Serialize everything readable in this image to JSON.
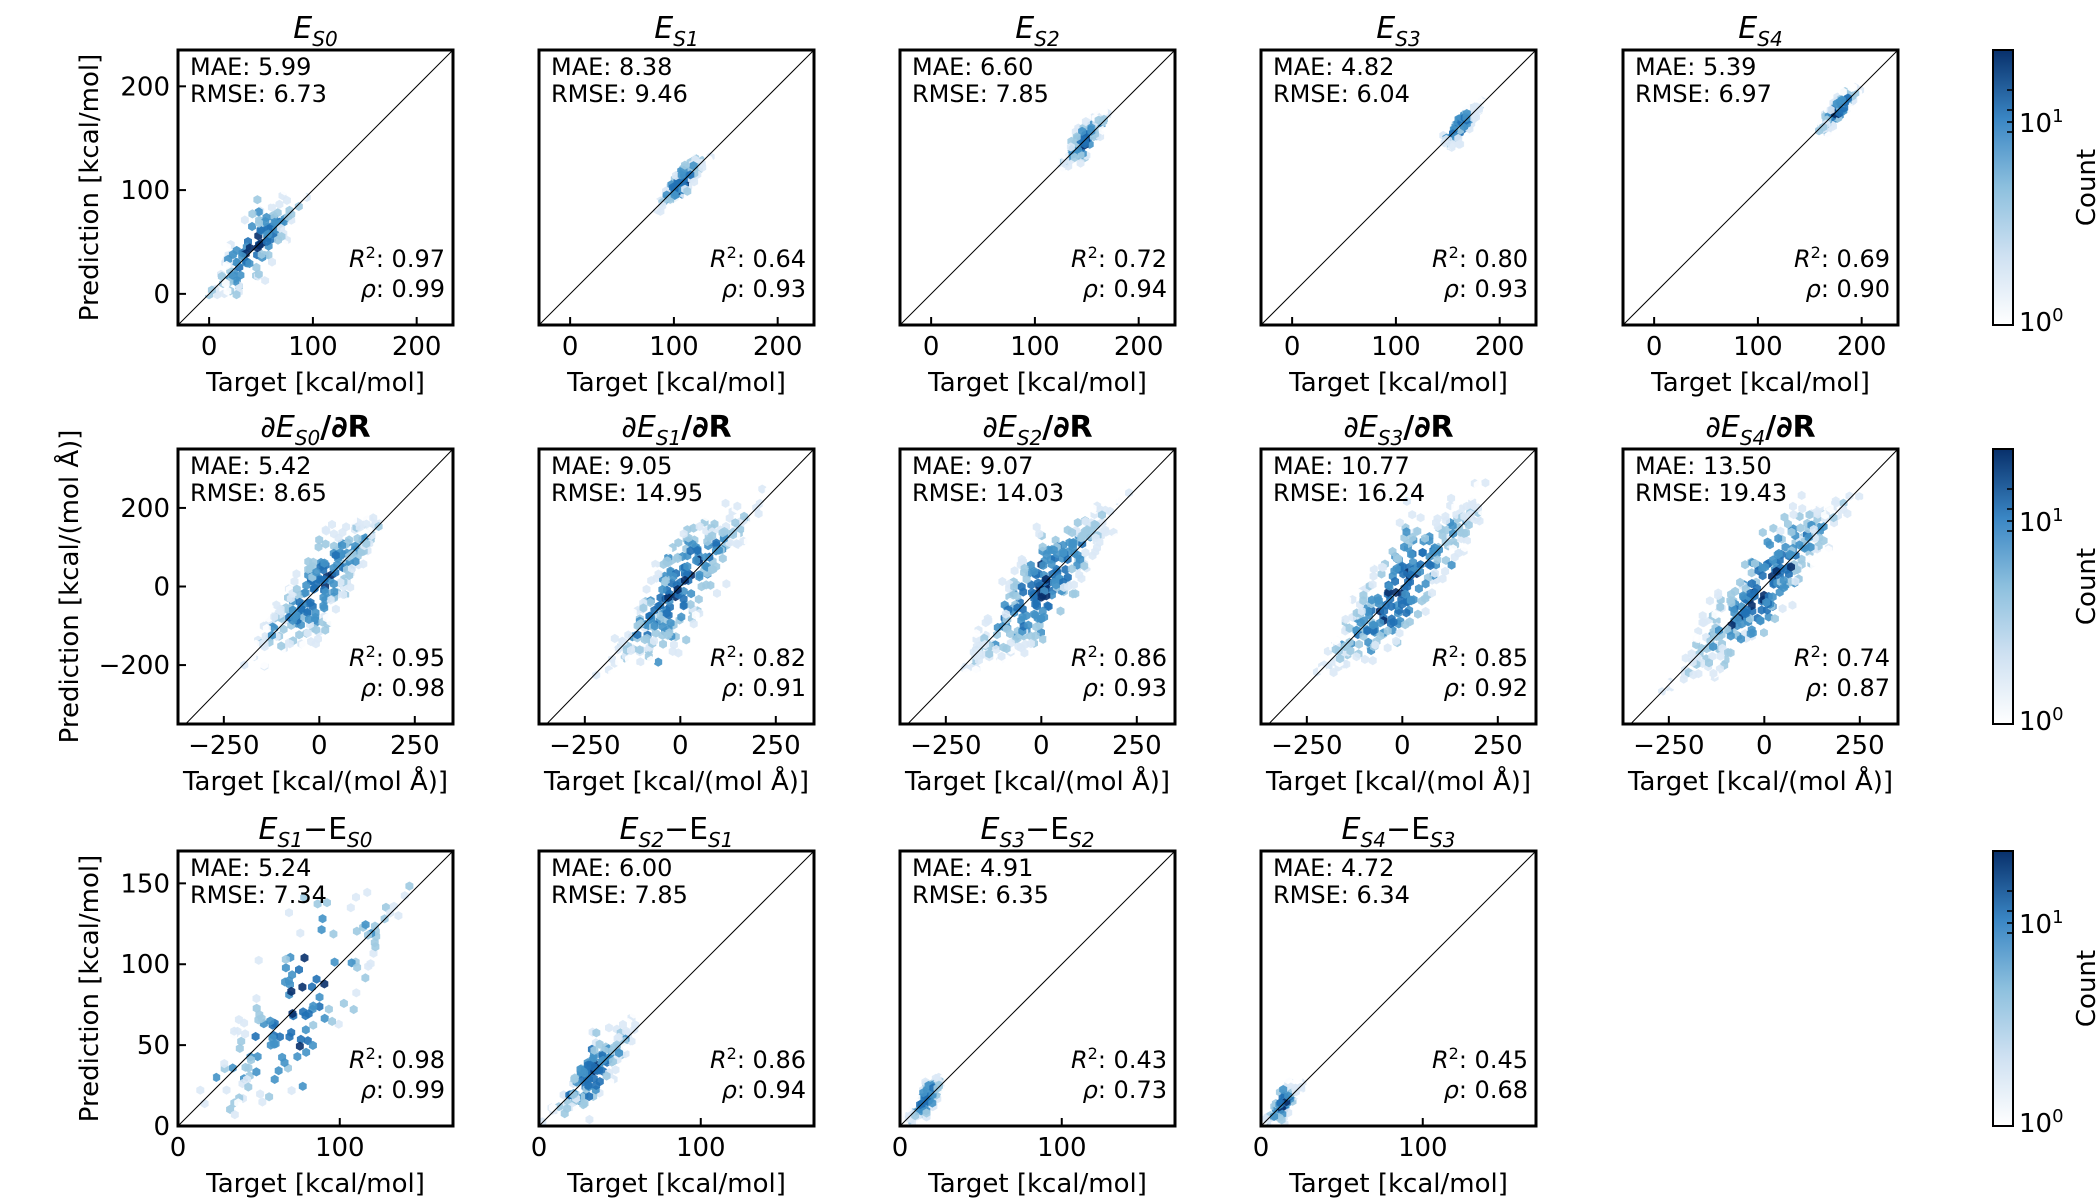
{
  "figure": {
    "colorbar_label": "Count",
    "colorbar_ticks": [
      {
        "base": "10",
        "exp": "1"
      },
      {
        "base": "10",
        "exp": "0"
      }
    ],
    "colormap": [
      "#ffffff",
      "#dbe9f6",
      "#9ecae1",
      "#4292c6",
      "#2171b5",
      "#08306b"
    ],
    "diagonal_color": "#000000"
  },
  "chart_data": [
    {
      "type": "scatter",
      "title_main": "E",
      "title_sub": "S0",
      "title_suffix": "",
      "xlabel": "Target [kcal/mol]",
      "ylabel": "Prediction [kcal/mol]",
      "xlim": [
        -30,
        235
      ],
      "ylim": [
        -30,
        235
      ],
      "xticks": [
        0,
        100,
        200
      ],
      "yticks": [
        0,
        100,
        200
      ],
      "mae": "MAE: 5.99",
      "rmse": "RMSE: 6.73",
      "r2": "0.97",
      "rho": "0.99",
      "cloud": {
        "x0": -10,
        "x1": 100,
        "xy_sigma": 4,
        "spread": 22,
        "n": 150
      }
    },
    {
      "type": "scatter",
      "title_main": "E",
      "title_sub": "S1",
      "title_suffix": "",
      "xlabel": "Target [kcal/mol]",
      "ylabel": "",
      "xlim": [
        -30,
        235
      ],
      "ylim": [
        -30,
        235
      ],
      "xticks": [
        0,
        100,
        200
      ],
      "yticks": [],
      "mae": "MAE: 8.38",
      "rmse": "RMSE: 9.46",
      "r2": "0.64",
      "rho": "0.93",
      "cloud": {
        "x0": 80,
        "x1": 135,
        "xy_sigma": 6,
        "spread": 10,
        "n": 130
      }
    },
    {
      "type": "scatter",
      "title_main": "E",
      "title_sub": "S2",
      "title_suffix": "",
      "xlabel": "Target [kcal/mol]",
      "ylabel": "",
      "xlim": [
        -30,
        235
      ],
      "ylim": [
        -30,
        235
      ],
      "xticks": [
        0,
        100,
        200
      ],
      "yticks": [],
      "mae": "MAE: 6.60",
      "rmse": "RMSE: 7.85",
      "r2": "0.72",
      "rho": "0.94",
      "cloud": {
        "x0": 120,
        "x1": 175,
        "xy_sigma": 5,
        "spread": 10,
        "n": 130
      }
    },
    {
      "type": "scatter",
      "title_main": "E",
      "title_sub": "S3",
      "title_suffix": "",
      "xlabel": "Target [kcal/mol]",
      "ylabel": "",
      "xlim": [
        -30,
        235
      ],
      "ylim": [
        -30,
        235
      ],
      "xticks": [
        0,
        100,
        200
      ],
      "yticks": [],
      "mae": "MAE: 4.82",
      "rmse": "RMSE: 6.04",
      "r2": "0.80",
      "rho": "0.93",
      "cloud": {
        "x0": 140,
        "x1": 185,
        "xy_sigma": 4,
        "spread": 8,
        "n": 130
      }
    },
    {
      "type": "scatter",
      "title_main": "E",
      "title_sub": "S4",
      "title_suffix": "",
      "xlabel": "Target [kcal/mol]",
      "ylabel": "",
      "xlim": [
        -30,
        235
      ],
      "ylim": [
        -30,
        235
      ],
      "xticks": [
        0,
        100,
        200
      ],
      "yticks": [],
      "mae": "MAE: 5.39",
      "rmse": "RMSE: 6.97",
      "r2": "0.69",
      "rho": "0.90",
      "cloud": {
        "x0": 155,
        "x1": 200,
        "xy_sigma": 4,
        "spread": 8,
        "n": 130
      }
    },
    {
      "type": "scatter",
      "title_main": "∂E",
      "title_sub": "S0",
      "title_suffix": "/∂R",
      "xlabel": "Target [kcal/(mol Å)]",
      "ylabel": "Prediction [kcal/(mol Å)]",
      "xlim": [
        -370,
        350
      ],
      "ylim": [
        -350,
        350
      ],
      "xticks": [
        -250,
        0,
        250
      ],
      "yticks": [
        -200,
        0,
        200
      ],
      "mae": "MAE: 5.42",
      "rmse": "RMSE: 8.65",
      "r2": "0.95",
      "rho": "0.98",
      "cloud": {
        "x0": -200,
        "x1": 200,
        "xy_sigma": 25,
        "spread": 70,
        "n": 320
      }
    },
    {
      "type": "scatter",
      "title_main": "∂E",
      "title_sub": "S1",
      "title_suffix": "/∂R",
      "xlabel": "Target [kcal/(mol Å)]",
      "ylabel": "",
      "xlim": [
        -370,
        350
      ],
      "ylim": [
        -350,
        350
      ],
      "xticks": [
        -250,
        0,
        250
      ],
      "yticks": [],
      "mae": "MAE: 9.05",
      "rmse": "RMSE: 14.95",
      "r2": "0.82",
      "rho": "0.91",
      "cloud": {
        "x0": -230,
        "x1": 230,
        "xy_sigma": 45,
        "spread": 80,
        "n": 340
      }
    },
    {
      "type": "scatter",
      "title_main": "∂E",
      "title_sub": "S2",
      "title_suffix": "/∂R",
      "xlabel": "Target [kcal/(mol Å)]",
      "ylabel": "",
      "xlim": [
        -370,
        350
      ],
      "ylim": [
        -350,
        350
      ],
      "xticks": [
        -250,
        0,
        250
      ],
      "yticks": [],
      "mae": "MAE: 9.07",
      "rmse": "RMSE: 14.03",
      "r2": "0.86",
      "rho": "0.93",
      "cloud": {
        "x0": -230,
        "x1": 230,
        "xy_sigma": 40,
        "spread": 80,
        "n": 340
      }
    },
    {
      "type": "scatter",
      "title_main": "∂E",
      "title_sub": "S3",
      "title_suffix": "/∂R",
      "xlabel": "Target [kcal/(mol Å)]",
      "ylabel": "",
      "xlim": [
        -370,
        350
      ],
      "ylim": [
        -350,
        350
      ],
      "xticks": [
        -250,
        0,
        250
      ],
      "yticks": [],
      "mae": "MAE: 10.77",
      "rmse": "RMSE: 16.24",
      "r2": "0.85",
      "rho": "0.92",
      "cloud": {
        "x0": -260,
        "x1": 260,
        "xy_sigma": 45,
        "spread": 85,
        "n": 360
      }
    },
    {
      "type": "scatter",
      "title_main": "∂E",
      "title_sub": "S4",
      "title_suffix": "/∂R",
      "xlabel": "Target [kcal/(mol Å)]",
      "ylabel": "",
      "xlim": [
        -370,
        350
      ],
      "ylim": [
        -350,
        350
      ],
      "xticks": [
        -250,
        0,
        250
      ],
      "yticks": [],
      "mae": "MAE: 13.50",
      "rmse": "RMSE: 19.43",
      "r2": "0.74",
      "rho": "0.87",
      "cloud": {
        "x0": -260,
        "x1": 260,
        "xy_sigma": 55,
        "spread": 85,
        "n": 360
      }
    },
    {
      "type": "scatter",
      "title_main": "E",
      "title_sub": "S1",
      "title_suffix": "−E",
      "title_sub2": "S0",
      "xlabel": "Target [kcal/mol]",
      "ylabel": "Prediction [kcal/mol]",
      "xlim": [
        0,
        170
      ],
      "ylim": [
        0,
        170
      ],
      "xticks": [
        0,
        100
      ],
      "yticks": [
        0,
        50,
        100,
        150
      ],
      "mae": "MAE: 5.24",
      "rmse": "RMSE: 7.34",
      "r2": "0.98",
      "rho": "0.99",
      "cloud": {
        "x0": 2,
        "x1": 155,
        "xy_sigma": 4,
        "spread": 35,
        "n": 170
      }
    },
    {
      "type": "scatter",
      "title_main": "E",
      "title_sub": "S2",
      "title_suffix": "−E",
      "title_sub2": "S1",
      "xlabel": "Target [kcal/mol]",
      "ylabel": "",
      "xlim": [
        0,
        170
      ],
      "ylim": [
        0,
        170
      ],
      "xticks": [
        0,
        100
      ],
      "yticks": [],
      "mae": "MAE: 6.00",
      "rmse": "RMSE: 7.85",
      "r2": "0.86",
      "rho": "0.94",
      "cloud": {
        "x0": 2,
        "x1": 65,
        "xy_sigma": 6,
        "spread": 12,
        "n": 150
      }
    },
    {
      "type": "scatter",
      "title_main": "E",
      "title_sub": "S3",
      "title_suffix": "−E",
      "title_sub2": "S2",
      "xlabel": "Target [kcal/mol]",
      "ylabel": "",
      "xlim": [
        0,
        170
      ],
      "ylim": [
        0,
        170
      ],
      "xticks": [
        0,
        100
      ],
      "yticks": [],
      "mae": "MAE: 4.91",
      "rmse": "RMSE: 6.35",
      "r2": "0.43",
      "rho": "0.73",
      "cloud": {
        "x0": 2,
        "x1": 30,
        "xy_sigma": 5,
        "spread": 6,
        "n": 120
      }
    },
    {
      "type": "scatter",
      "title_main": "E",
      "title_sub": "S4",
      "title_suffix": "−E",
      "title_sub2": "S3",
      "xlabel": "Target [kcal/mol]",
      "ylabel": "",
      "xlim": [
        0,
        170
      ],
      "ylim": [
        0,
        170
      ],
      "xticks": [
        0,
        100
      ],
      "yticks": [],
      "mae": "MAE: 4.72",
      "rmse": "RMSE: 6.34",
      "r2": "0.45",
      "rho": "0.68",
      "cloud": {
        "x0": 2,
        "x1": 25,
        "xy_sigma": 5,
        "spread": 6,
        "n": 120
      }
    }
  ]
}
